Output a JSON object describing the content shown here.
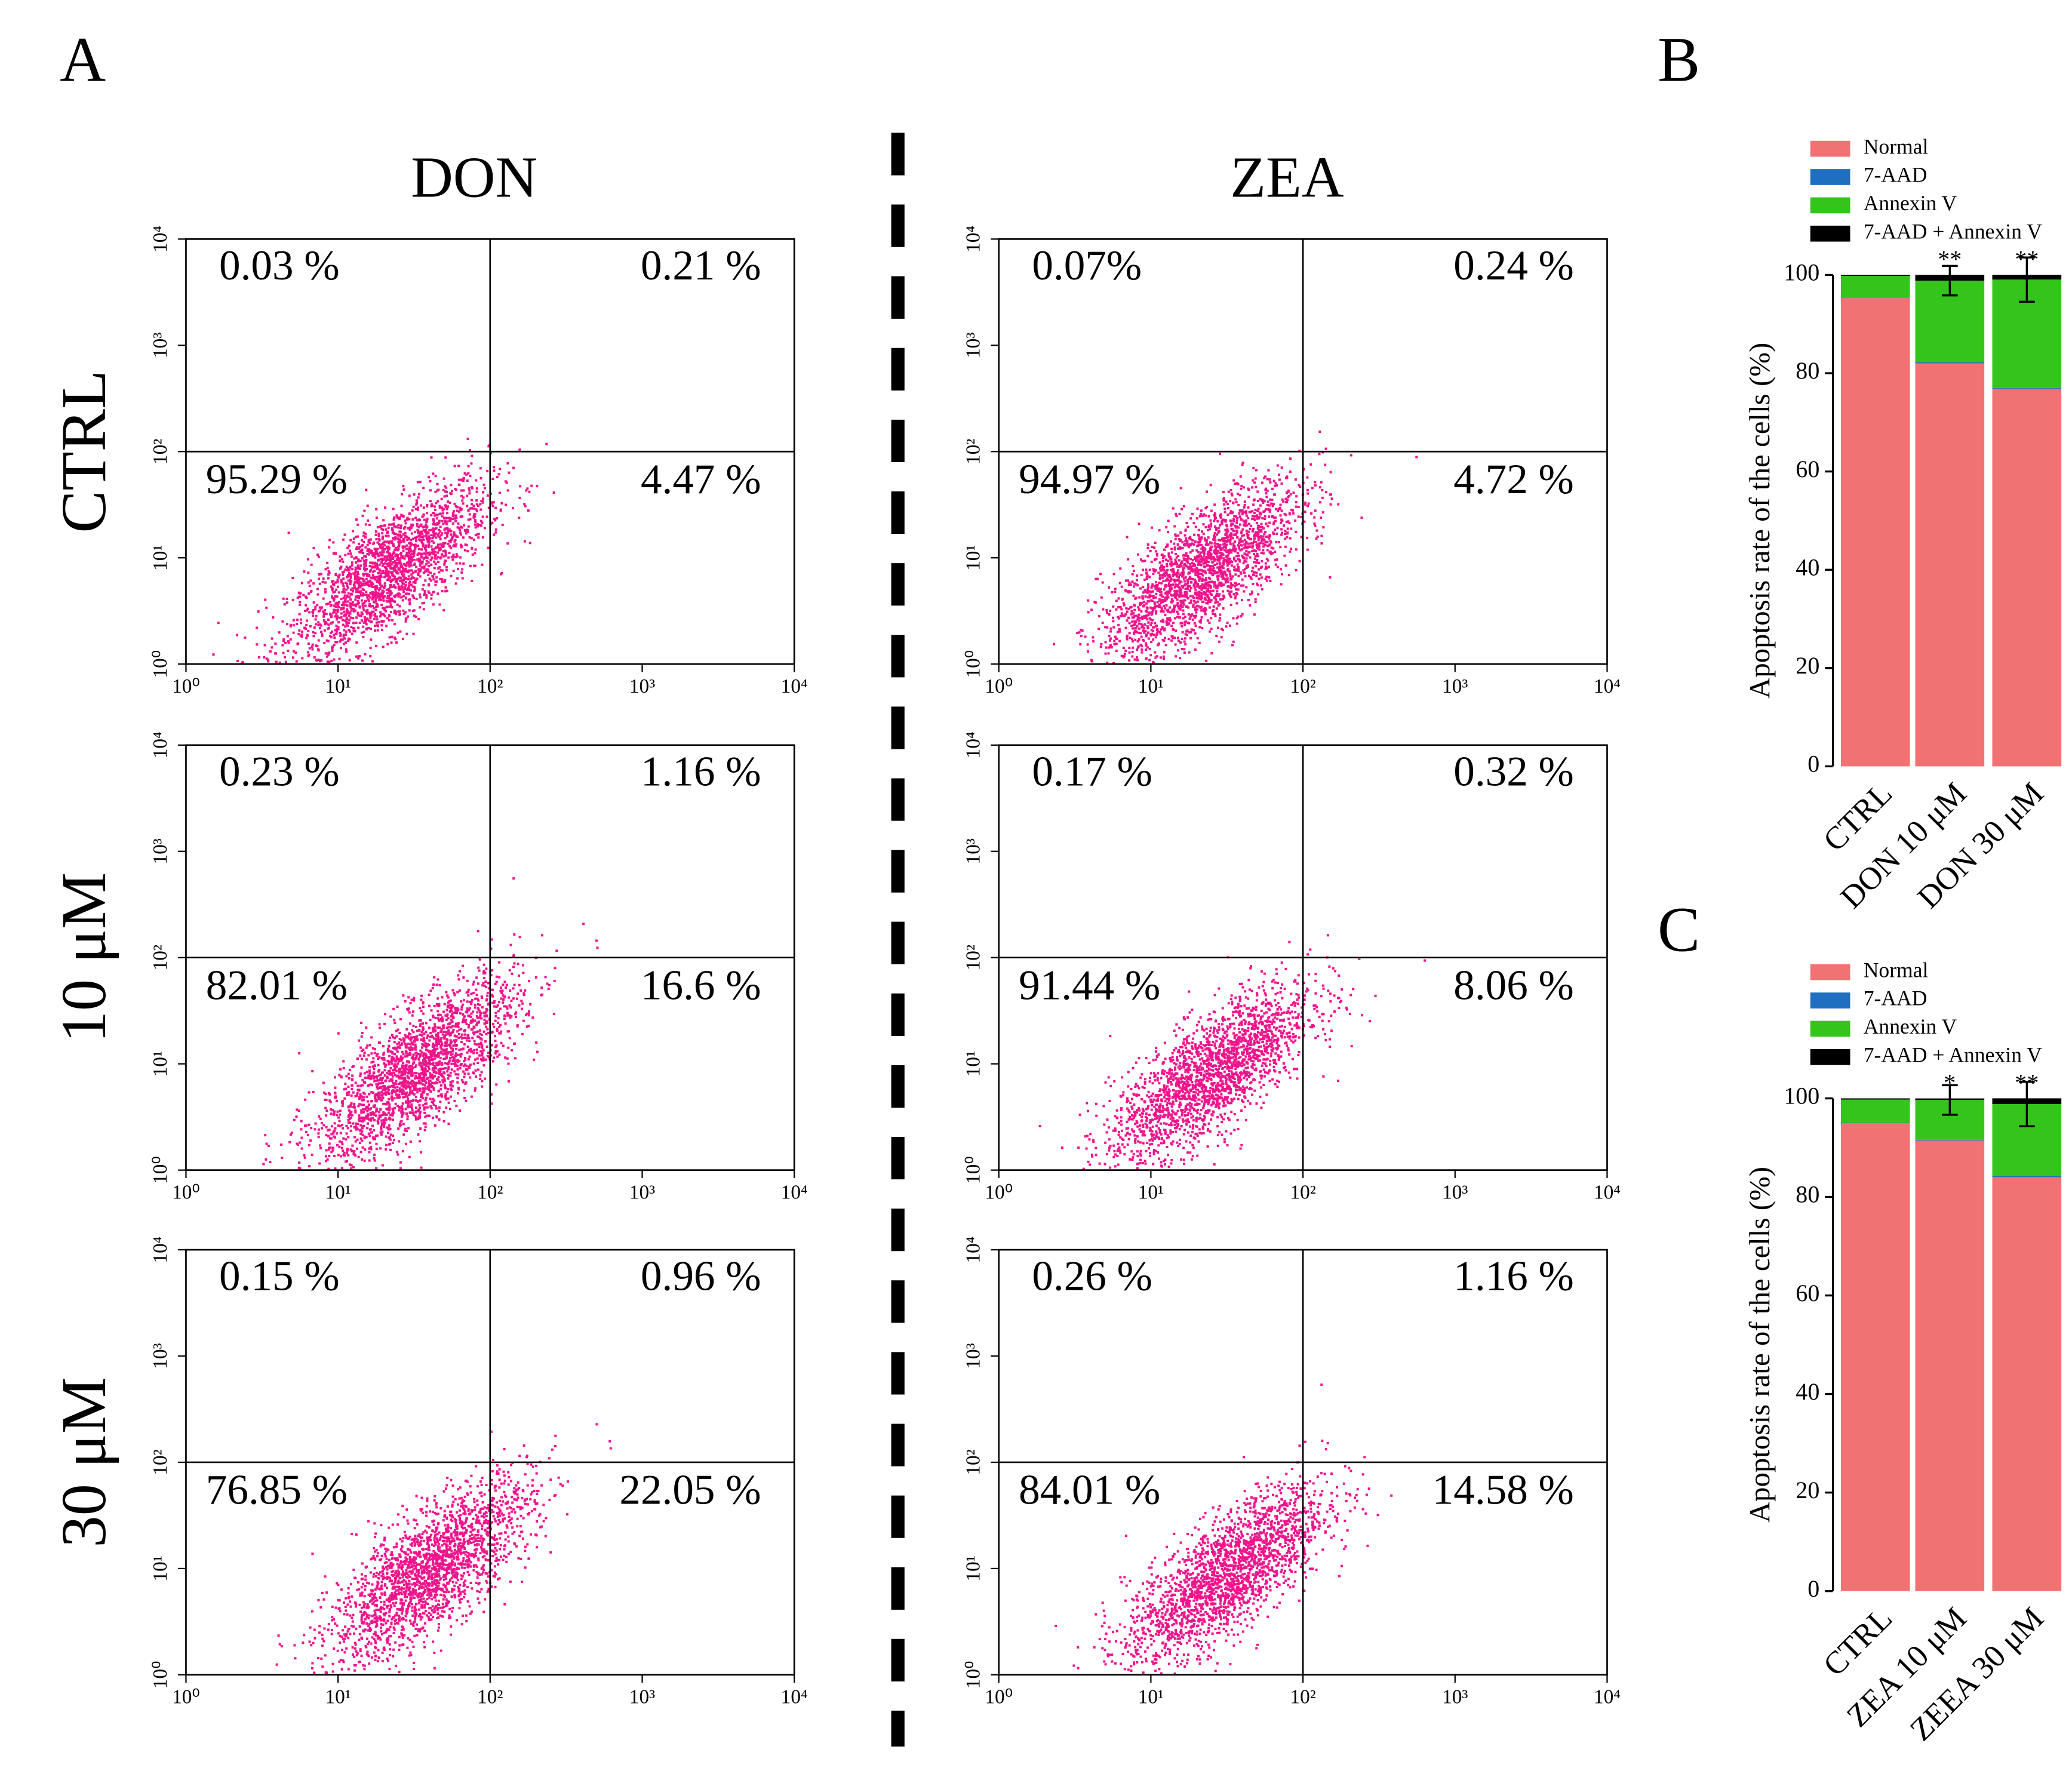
{
  "chart_data": [
    {
      "type": "flow",
      "panel": "A",
      "columns": [
        "DON",
        "ZEA"
      ],
      "rows": [
        "CTRL",
        "10 μM",
        "30 μM"
      ],
      "log": true,
      "xlim": [
        1,
        10000
      ],
      "ylim": [
        1,
        10000
      ],
      "quadrant_gate": 100,
      "point_color": "#f0148c",
      "xticks": [
        {
          "value": 1,
          "label": "10⁰"
        },
        {
          "value": 10,
          "label": "10¹"
        },
        {
          "value": 100,
          "label": "10²"
        },
        {
          "value": 1000,
          "label": "10³"
        },
        {
          "value": 10000,
          "label": "10⁴"
        }
      ],
      "yticks": [
        {
          "value": 1,
          "label": "10⁰"
        },
        {
          "value": 10,
          "label": "10¹"
        },
        {
          "value": 100,
          "label": "10²"
        },
        {
          "value": 1000,
          "label": "10³"
        },
        {
          "value": 10000,
          "label": "10⁴"
        }
      ],
      "panels": [
        {
          "values": [
            0.03,
            0.21,
            95.29,
            4.47
          ],
          "value_labels": [
            "0.03 %",
            "0.21 %",
            "95.29 %",
            "4.47 %"
          ]
        },
        {
          "values": [
            0.07,
            0.24,
            94.97,
            4.72
          ],
          "value_labels": [
            "0.07%",
            "0.24 %",
            "94.97 %",
            "4.72 %"
          ]
        },
        {
          "values": [
            0.23,
            1.16,
            82.01,
            16.6
          ],
          "value_labels": [
            "0.23 %",
            "1.16 %",
            "82.01 %",
            "16.6 %"
          ]
        },
        {
          "values": [
            0.17,
            0.32,
            91.44,
            8.06
          ],
          "value_labels": [
            "0.17 %",
            "0.32 %",
            "91.44 %",
            "8.06 %"
          ]
        },
        {
          "values": [
            0.15,
            0.96,
            76.85,
            22.05
          ],
          "value_labels": [
            "0.15 %",
            "0.96 %",
            "76.85 %",
            "22.05 %"
          ]
        },
        {
          "values": [
            0.26,
            1.16,
            84.01,
            14.58
          ],
          "value_labels": [
            "0.26 %",
            "1.16 %",
            "84.01 %",
            "14.58 %"
          ]
        }
      ]
    },
    {
      "type": "bar",
      "stacked": true,
      "panel": "B",
      "ylabel": "Apoptosis rate of the cells (%)",
      "categories": [
        "CTRL",
        "DON 10 μM",
        "DON 30 μM"
      ],
      "ylim": [
        0,
        100
      ],
      "yticks": [
        0,
        20,
        40,
        60,
        80,
        100
      ],
      "series": [
        {
          "name": "Normal",
          "color": "#f07272",
          "values": [
            95.29,
            82.01,
            76.85
          ]
        },
        {
          "name": "7-AAD",
          "color": "#1f6fc0",
          "values": [
            0.03,
            0.23,
            0.15
          ]
        },
        {
          "name": "Annexin V",
          "color": "#34c41c",
          "values": [
            4.47,
            16.6,
            22.05
          ],
          "errors": [
            null,
            3,
            4.5
          ]
        },
        {
          "name": "7-AAD + Annexin V",
          "color": "#000000",
          "values": [
            0.21,
            1.16,
            0.96
          ]
        }
      ],
      "annotations": [
        null,
        "**",
        "**"
      ]
    },
    {
      "type": "bar",
      "stacked": true,
      "panel": "C",
      "ylabel": "Apoptosis rate of the cells (%)",
      "categories": [
        "CTRL",
        "ZEA 10 μM",
        "ZEEA 30 μM"
      ],
      "ylim": [
        0,
        100
      ],
      "yticks": [
        0,
        20,
        40,
        60,
        80,
        100
      ],
      "series": [
        {
          "name": "Normal",
          "color": "#f07272",
          "values": [
            94.97,
            91.44,
            84.01
          ]
        },
        {
          "name": "7-AAD",
          "color": "#1f6fc0",
          "values": [
            0.07,
            0.17,
            0.26
          ]
        },
        {
          "name": "Annexin V",
          "color": "#34c41c",
          "values": [
            4.72,
            8.06,
            14.58
          ],
          "errors": [
            null,
            3,
            4.5
          ]
        },
        {
          "name": "7-AAD + Annexin V",
          "color": "#000000",
          "values": [
            0.24,
            0.32,
            1.16
          ]
        }
      ],
      "annotations": [
        null,
        "*",
        "**"
      ]
    }
  ]
}
